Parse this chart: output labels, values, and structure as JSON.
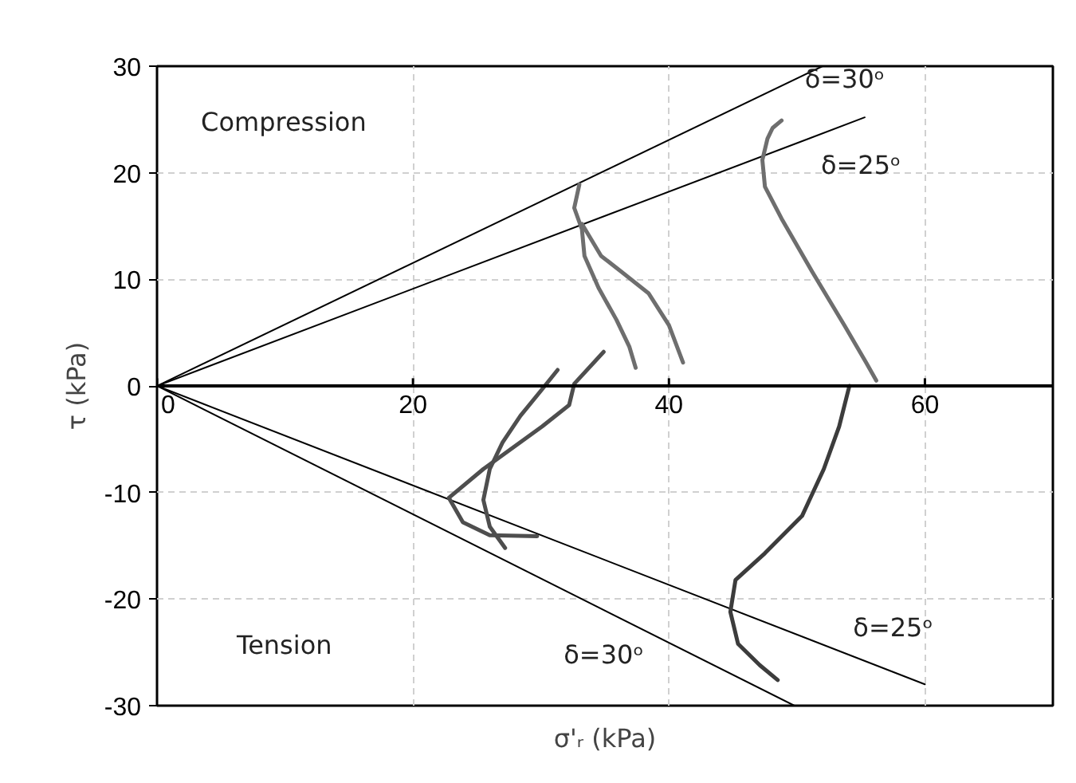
{
  "chart_data": {
    "type": "line",
    "xlabel": "σ'ᵣ (kPa)",
    "ylabel": "τ (kPa)",
    "xlim": [
      0,
      70
    ],
    "ylim": [
      -30,
      30
    ],
    "xticks": [
      0,
      20,
      40,
      60
    ],
    "yticks": [
      -30,
      -20,
      -10,
      0,
      10,
      20,
      30
    ],
    "grid": true,
    "marker": "none",
    "line_style": "solid",
    "series": [
      {
        "color": "#000000",
        "x": [
          0,
          52
        ],
        "values": [
          0,
          30
        ]
      },
      {
        "color": "#000000",
        "x": [
          0,
          55.3
        ],
        "values": [
          0,
          25.2
        ]
      },
      {
        "color": "#000000",
        "x": [
          0,
          60
        ],
        "values": [
          0,
          -28
        ]
      },
      {
        "color": "#000000",
        "x": [
          0,
          49.8
        ],
        "values": [
          0,
          -30
        ]
      },
      {
        "color": "#6e6e6e",
        "x": [
          33.0,
          32.6,
          33.2,
          33.4,
          34.5,
          35.9,
          36.9,
          37.4
        ],
        "values": [
          18.9,
          16.7,
          14.7,
          12.2,
          9.2,
          6.2,
          3.7,
          1.7
        ]
      },
      {
        "color": "#6e6e6e",
        "x": [
          33.2,
          34.7,
          36.3,
          38.4,
          40.0,
          41.1
        ],
        "values": [
          15.2,
          12.2,
          10.7,
          8.7,
          5.7,
          2.2
        ]
      },
      {
        "color": "#6e6e6e",
        "x": [
          48.8,
          48.1,
          47.7,
          47.3,
          47.5,
          48.8,
          51.2,
          53.7,
          55.4,
          56.2
        ],
        "values": [
          24.9,
          24.2,
          23.2,
          21.2,
          18.7,
          15.7,
          10.7,
          5.7,
          2.2,
          0.5
        ]
      },
      {
        "color": "#3c3c3c",
        "x": [
          54.1,
          53.3,
          52.1,
          50.4,
          47.5,
          45.2,
          44.8,
          45.4,
          47.1,
          48.5
        ],
        "values": [
          0,
          -3.8,
          -7.8,
          -12.2,
          -15.7,
          -18.2,
          -21.2,
          -24.2,
          -26.2,
          -27.6
        ]
      },
      {
        "color": "#4e4e4e",
        "x": [
          31.3,
          30.1,
          28.4,
          27.0,
          26.0,
          25.5,
          26.0,
          27.2
        ],
        "values": [
          1.5,
          -0.3,
          -2.8,
          -5.3,
          -7.8,
          -10.7,
          -13.2,
          -15.2
        ]
      },
      {
        "color": "#4e4e4e",
        "x": [
          34.9,
          32.6,
          32.2,
          30.1,
          25.5,
          22.8,
          23.9,
          26.0,
          29.7
        ],
        "values": [
          3.2,
          0.2,
          -1.8,
          -3.8,
          -7.8,
          -10.5,
          -12.8,
          -14.0,
          -14.1
        ]
      }
    ],
    "annotations": [
      "Compression",
      "Tension",
      "δ=30ᵒ",
      "δ=25ᵒ",
      "δ=25ᵒ",
      "δ=30ᵒ"
    ]
  }
}
